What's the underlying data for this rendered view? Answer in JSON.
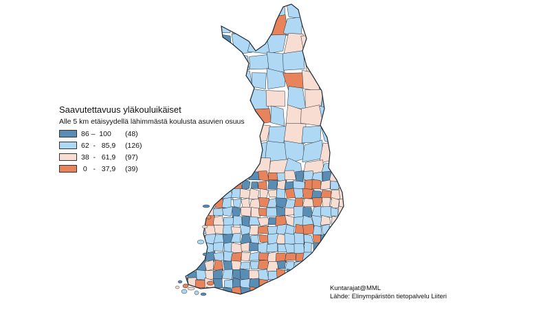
{
  "legend": {
    "title": "Saavutettavuus yläkouluikäiset",
    "subtitle": "Alle 5 km etäisyydellä lähimmästä koulusta asuvien osuus",
    "classes": [
      {
        "range": "86 –  100",
        "count": "(48)",
        "color": "#5a8db4"
      },
      {
        "range": "62  -   85,9",
        "count": "(126)",
        "color": "#aed8f4"
      },
      {
        "range": "38  -   61,9",
        "count": "(97)",
        "color": "#f7ddd2"
      },
      {
        "range": " 0   -   37,9",
        "count": "(39)",
        "color": "#e7845c"
      }
    ]
  },
  "credits": {
    "line1": "Kuntarajat@MML",
    "line2": "Lähde: Elinympäristön tietopalvelu Liiteri"
  },
  "colors": {
    "class1": "#5a8db4",
    "class2": "#aed8f4",
    "class3": "#f7ddd2",
    "class4": "#e7845c",
    "border": "#1f2a33"
  }
}
